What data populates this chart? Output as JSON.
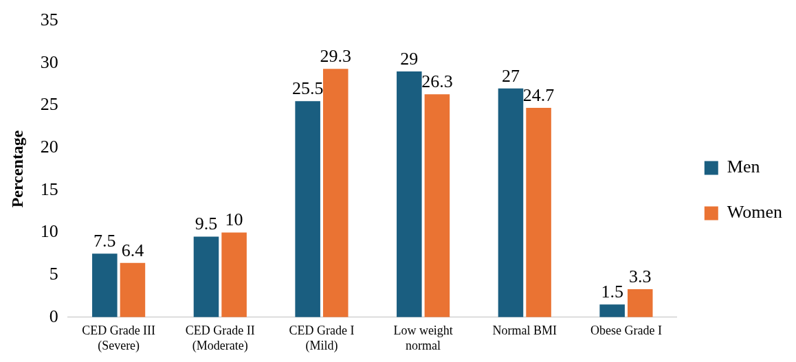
{
  "chart_data": {
    "type": "bar",
    "ylabel": "Percentage",
    "categories": [
      "CED Grade III (Severe)",
      "CED Grade II (Moderate)",
      "CED Grade I (Mild)",
      "Low weight normal",
      "Normal BMI",
      "Obese Grade I"
    ],
    "series": [
      {
        "name": "Men",
        "color": "#1a5e80",
        "values": [
          7.5,
          9.5,
          25.5,
          29,
          27,
          1.5
        ]
      },
      {
        "name": "Women",
        "color": "#ea7333",
        "values": [
          6.4,
          10,
          29.3,
          26.3,
          24.7,
          3.3
        ]
      }
    ],
    "ylim": [
      0,
      35
    ],
    "yticks": [
      0,
      5,
      10,
      15,
      20,
      25,
      30,
      35
    ],
    "grid": false,
    "legend": "right",
    "data_labels": true
  }
}
